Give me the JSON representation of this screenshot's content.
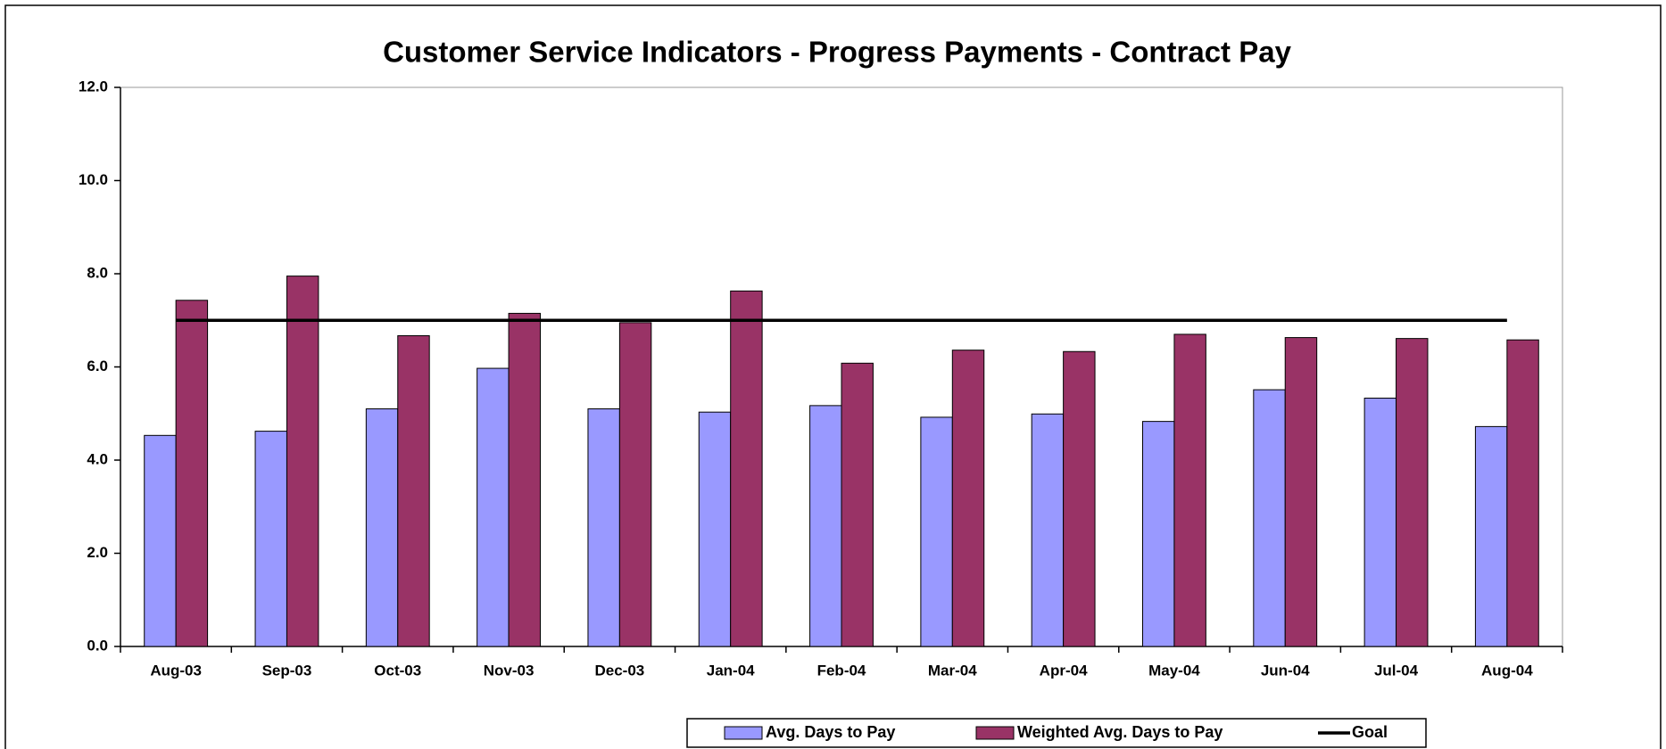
{
  "chart_data": {
    "type": "bar",
    "title": "Customer Service Indicators - Progress Payments - Contract Pay",
    "categories": [
      "Aug-03",
      "Sep-03",
      "Oct-03",
      "Nov-03",
      "Dec-03",
      "Jan-04",
      "Feb-04",
      "Mar-04",
      "Apr-04",
      "May-04",
      "Jun-04",
      "Jul-04",
      "Aug-04"
    ],
    "series": [
      {
        "name": "Avg. Days to Pay",
        "color": "#9999ff",
        "values": [
          4.53,
          4.62,
          5.1,
          5.97,
          5.1,
          5.03,
          5.17,
          4.92,
          4.99,
          4.83,
          5.51,
          5.33,
          4.72
        ]
      },
      {
        "name": "Weighted Avg. Days to Pay",
        "color": "#993366",
        "values": [
          7.43,
          7.95,
          6.67,
          7.15,
          6.95,
          7.63,
          6.08,
          6.36,
          6.33,
          6.7,
          6.63,
          6.61,
          6.58
        ]
      },
      {
        "name": "Goal",
        "color": "#000000",
        "type": "line",
        "values": [
          7,
          7,
          7,
          7,
          7,
          7,
          7,
          7,
          7,
          7,
          7,
          7,
          7
        ]
      }
    ],
    "ylim": [
      0,
      12
    ],
    "yticks": [
      {
        "value": 0,
        "label": "0.0"
      },
      {
        "value": 2,
        "label": "2.0"
      },
      {
        "value": 4,
        "label": "4.0"
      },
      {
        "value": 6,
        "label": "6.0"
      },
      {
        "value": 8,
        "label": "8.0"
      },
      {
        "value": 10,
        "label": "10.0"
      },
      {
        "value": 12,
        "label": "12.0"
      }
    ],
    "legend": "bottom"
  }
}
